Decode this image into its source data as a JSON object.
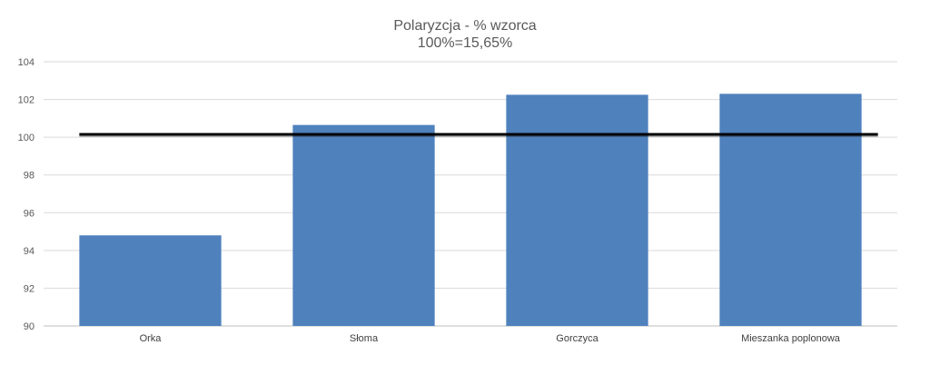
{
  "chart_data": {
    "type": "bar",
    "title": "Polaryzcja - % wzorca",
    "subtitle": "100%=15,65%",
    "categories": [
      "Orka",
      "Słoma",
      "Gorczyca",
      "Mieszanka poplonowa"
    ],
    "values": [
      94.8,
      100.65,
      102.25,
      102.3
    ],
    "reference_line": 100.15,
    "ylim": [
      90,
      104
    ],
    "yticks": [
      90,
      92,
      94,
      96,
      98,
      100,
      102,
      104
    ],
    "grid": true,
    "bar_color": "#4f81bd",
    "reference_color": "#000000"
  }
}
